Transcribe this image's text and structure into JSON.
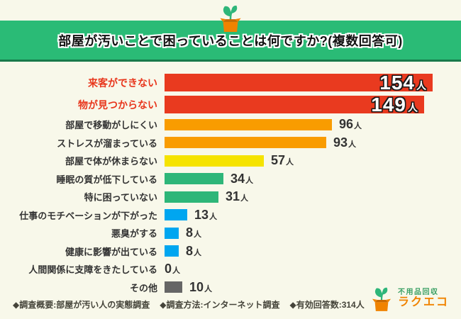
{
  "title": "部屋が汚いことで困っていることは何ですか?(複数回答可)",
  "colors": {
    "background": "#f8f8ea",
    "banner_green": "#2abb76",
    "banner_border": "#187a4b",
    "emphasis_red": "#e8361c",
    "bar_red": "#e93a1f",
    "bar_orange": "#f99c00",
    "bar_yellow": "#f5e300",
    "bar_green": "#2eb679",
    "bar_blue": "#00a6f0",
    "bar_gray": "#666666",
    "text_dark": "#333333"
  },
  "chart_data": {
    "type": "bar",
    "orientation": "horizontal",
    "title": "部屋が汚いことで困っていることは何ですか?(複数回答可)",
    "unit": "人",
    "xlim": [
      0,
      160
    ],
    "grid": false,
    "categories": [
      "来客ができない",
      "物が見つからない",
      "部屋で移動がしにくい",
      "ストレスが溜まっている",
      "部屋で体が休まらない",
      "睡眠の質が低下している",
      "特に困っていない",
      "仕事のモチベーションが下がった",
      "悪臭がする",
      "健康に影響が出ている",
      "人間関係に支障をきたしている",
      "その他"
    ],
    "values": [
      154,
      149,
      96,
      93,
      57,
      34,
      31,
      13,
      8,
      8,
      0,
      10
    ],
    "bar_colors": [
      "#e93a1f",
      "#e93a1f",
      "#f99c00",
      "#f99c00",
      "#f5e300",
      "#2eb679",
      "#2eb679",
      "#00a6f0",
      "#00a6f0",
      "#00a6f0",
      "",
      "#666666"
    ],
    "emphasized": [
      true,
      true,
      false,
      false,
      false,
      false,
      false,
      false,
      false,
      false,
      false,
      false
    ]
  },
  "footer": {
    "survey_overview": "◆調査概要:部屋が汚い人の実態調査",
    "survey_method": "◆調査方法:インターネット調査",
    "valid_responses": "◆有効回答数:314人"
  },
  "logo": {
    "service": "不用品回収",
    "brand": "ラクエコ"
  }
}
